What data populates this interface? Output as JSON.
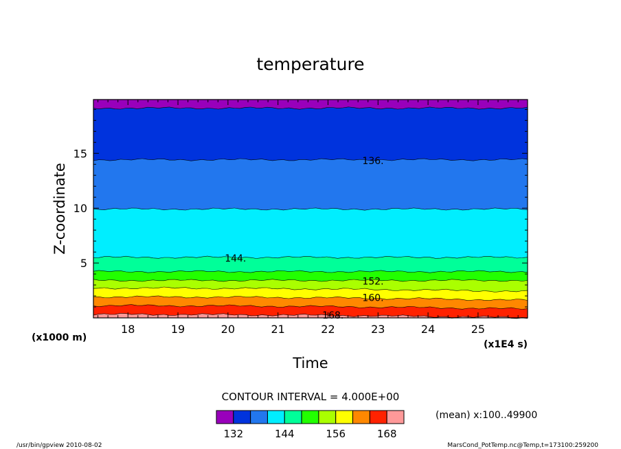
{
  "chart_data": {
    "type": "heatmap",
    "subtype": "filled-contour",
    "title": "temperature",
    "xlabel": "Time",
    "ylabel": "Z-coordinate",
    "x_unit": "(x1E4 s)",
    "y_unit": "(x1000 m)",
    "xlim": [
      17.31,
      25.99
    ],
    "ylim": [
      0,
      19.9
    ],
    "x_ticks": [
      "18",
      "19",
      "20",
      "21",
      "22",
      "23",
      "24",
      "25"
    ],
    "y_ticks": [
      "5",
      "10",
      "15"
    ],
    "contour_interval_label": "CONTOUR INTERVAL = 4.000E+00",
    "contour_levels": [
      132,
      136,
      140,
      144,
      148,
      152,
      156,
      160,
      164,
      168
    ],
    "band_colors": [
      "#9900bb",
      "#0033dd",
      "#2277ee",
      "#00eeff",
      "#00ff99",
      "#22ff00",
      "#aaff00",
      "#ffff00",
      "#ff8800",
      "#ff2200",
      "#ff9999"
    ],
    "bands_from_top": [
      {
        "range": "<132",
        "color": "#9900bb",
        "z_bottom": 19.1
      },
      {
        "range": "132-136",
        "color": "#0033dd",
        "z_bottom": 14.4
      },
      {
        "range": "136-140",
        "color": "#2277ee",
        "z_bottom": 9.9
      },
      {
        "range": "140-144",
        "color": "#00eeff",
        "z_bottom": 5.5
      },
      {
        "range": "144-148",
        "color": "#00ff99",
        "z_bottom": 4.2
      },
      {
        "range": "148-152",
        "color": "#22ff00",
        "z_bottom": 3.4
      },
      {
        "range": "152-156",
        "color": "#aaff00",
        "z_bottom": 2.7
      },
      {
        "range": "156-160",
        "color": "#ffff00",
        "z_bottom": 1.9
      },
      {
        "range": "160-164",
        "color": "#ff8800",
        "z_bottom": 1.1
      },
      {
        "range": "164-168",
        "color": "#ff2200",
        "z_bottom": 0.3
      },
      {
        "range": ">168",
        "color": "#ff9999",
        "z_bottom": 0
      }
    ],
    "contour_labels": [
      {
        "text": "136.",
        "x": 22.9,
        "z": 14.4
      },
      {
        "text": "144.",
        "x": 20.15,
        "z": 5.5
      },
      {
        "text": "152.",
        "x": 22.9,
        "z": 3.4
      },
      {
        "text": "160.",
        "x": 22.9,
        "z": 1.9
      },
      {
        "text": "168.",
        "x": 22.1,
        "z": 0.3
      }
    ],
    "colorbar_labels": [
      "132",
      "144",
      "156",
      "168"
    ],
    "colorbar_label_levels": [
      132,
      144,
      156,
      168
    ],
    "annotation_mean": "(mean) x:100..49900",
    "footer_left": "/usr/bin/gpview   2010-08-02",
    "footer_right": "MarsCond_PotTemp.nc@Temp,t=173100:259200"
  }
}
